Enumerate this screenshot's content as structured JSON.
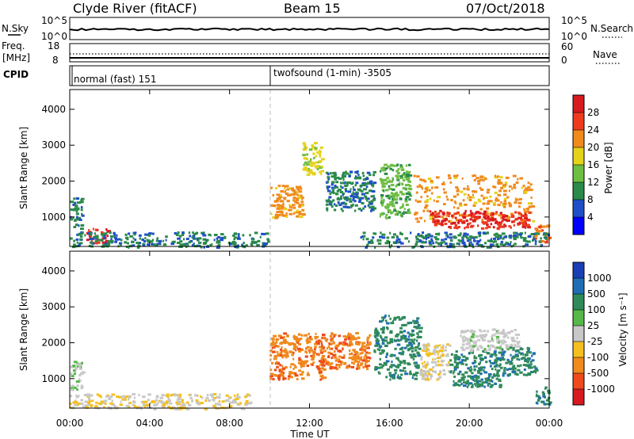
{
  "header": {
    "radar": "Clyde River (fitACF)",
    "beam": "Beam 15",
    "date": "07/Oct/2018"
  },
  "top_panels": {
    "nsky_label": "N.Sky",
    "nsky_ticks": [
      "10^5",
      "10^0"
    ],
    "nsearch_label": "N.Search",
    "nsearch_ticks": [
      "10^5",
      "10^0"
    ],
    "freq_label": "Freq.",
    "freq_unit": "[MHz]",
    "freq_ticks": [
      "18",
      "8"
    ],
    "nave_label": "Nave",
    "nave_ticks": [
      "60",
      "0"
    ],
    "cpid_label": "CPID",
    "cpid_modes": [
      "normal (fast) 151",
      "twofsound (1-min) -3505"
    ]
  },
  "x_axis": {
    "ticks": [
      "00:00",
      "04:00",
      "08:00",
      "12:00",
      "16:00",
      "20:00",
      "00:00"
    ],
    "label": "Time UT"
  },
  "power_panel": {
    "ylabel": "Slant Range [km]",
    "yticks": [
      "1000",
      "2000",
      "3000",
      "4000"
    ],
    "colorbar_label": "Power [dB]",
    "colorbar_ticks": [
      "28",
      "24",
      "20",
      "16",
      "12",
      "8",
      "4"
    ],
    "colors": [
      "#0000ff",
      "#1e4fc8",
      "#2a8a4a",
      "#6fbe44",
      "#e5d21a",
      "#f08a1c",
      "#ee3b1e",
      "#d71920"
    ]
  },
  "velocity_panel": {
    "ylabel": "Slant Range [km]",
    "yticks": [
      "1000",
      "2000",
      "3000",
      "4000"
    ],
    "colorbar_label": "Velocity [m s⁻¹]",
    "colorbar_ticks": [
      "1000",
      "500",
      "100",
      "25",
      "-25",
      "-100",
      "-500",
      "-1000"
    ],
    "colors": [
      "#1a3fb5",
      "#1f6eb3",
      "#2f8a5a",
      "#55b848",
      "#c8c8c8",
      "#f4c020",
      "#f08a1c",
      "#ee4a1c",
      "#d71920"
    ]
  },
  "chart_data": {
    "type": "heatmap",
    "title": "Clyde River (fitACF)  Beam 15  07/Oct/2018",
    "xlabel": "Time UT",
    "ylabel": "Slant Range [km]",
    "xlim_hours": [
      0,
      24
    ],
    "ylim_km": [
      180,
      4550
    ],
    "grid": false,
    "mode_change_hour": 10.0,
    "panels": [
      {
        "name": "Power [dB]",
        "value_range": [
          0,
          30
        ],
        "regions": [
          {
            "t": [
              0.0,
              0.6
            ],
            "r": [
              700,
              1550
            ],
            "value": 8
          },
          {
            "t": [
              0.8,
              1.9
            ],
            "r": [
              300,
              700
            ],
            "value": 26
          },
          {
            "t": [
              0.0,
              10.0
            ],
            "r": [
              180,
              600
            ],
            "value": 8
          },
          {
            "t": [
              10.0,
              11.7
            ],
            "r": [
              1000,
              1900
            ],
            "value": 20
          },
          {
            "t": [
              11.6,
              12.6
            ],
            "r": [
              2200,
              3100
            ],
            "value": 16
          },
          {
            "t": [
              12.8,
              15.2
            ],
            "r": [
              1200,
              2300
            ],
            "value": 8
          },
          {
            "t": [
              15.5,
              17.0
            ],
            "r": [
              1000,
              2500
            ],
            "value": 12
          },
          {
            "t": [
              17.2,
              23.2
            ],
            "r": [
              900,
              2200
            ],
            "value": 20
          },
          {
            "t": [
              18.0,
              23.0
            ],
            "r": [
              700,
              1200
            ],
            "value": 26
          },
          {
            "t": [
              23.2,
              24.0
            ],
            "r": [
              300,
              800
            ],
            "value": 22
          },
          {
            "t": [
              14.5,
              24.0
            ],
            "r": [
              180,
              600
            ],
            "value": 8
          }
        ]
      },
      {
        "name": "Velocity [m s^-1]",
        "value_range": [
          -1000,
          1000
        ],
        "regions": [
          {
            "t": [
              0.0,
              0.6
            ],
            "r": [
              700,
              1500
            ],
            "value": 100
          },
          {
            "t": [
              0.0,
              9.0
            ],
            "r": [
              180,
              600
            ],
            "value": -100
          },
          {
            "t": [
              10.0,
              12.7
            ],
            "r": [
              1000,
              2300
            ],
            "value": -500
          },
          {
            "t": [
              12.5,
              15.0
            ],
            "r": [
              1300,
              2300
            ],
            "value": -500
          },
          {
            "t": [
              15.2,
              17.5
            ],
            "r": [
              1000,
              2800
            ],
            "value": 500
          },
          {
            "t": [
              17.5,
              19.0
            ],
            "r": [
              1000,
              2000
            ],
            "value": -100
          },
          {
            "t": [
              19.0,
              21.5
            ],
            "r": [
              800,
              1800
            ],
            "value": 500
          },
          {
            "t": [
              19.5,
              22.5
            ],
            "r": [
              1800,
              2400
            ],
            "value": 25
          },
          {
            "t": [
              21.5,
              23.3
            ],
            "r": [
              1100,
              1900
            ],
            "value": 500
          },
          {
            "t": [
              23.3,
              24.0
            ],
            "r": [
              300,
              800
            ],
            "value": 500
          }
        ]
      }
    ]
  }
}
